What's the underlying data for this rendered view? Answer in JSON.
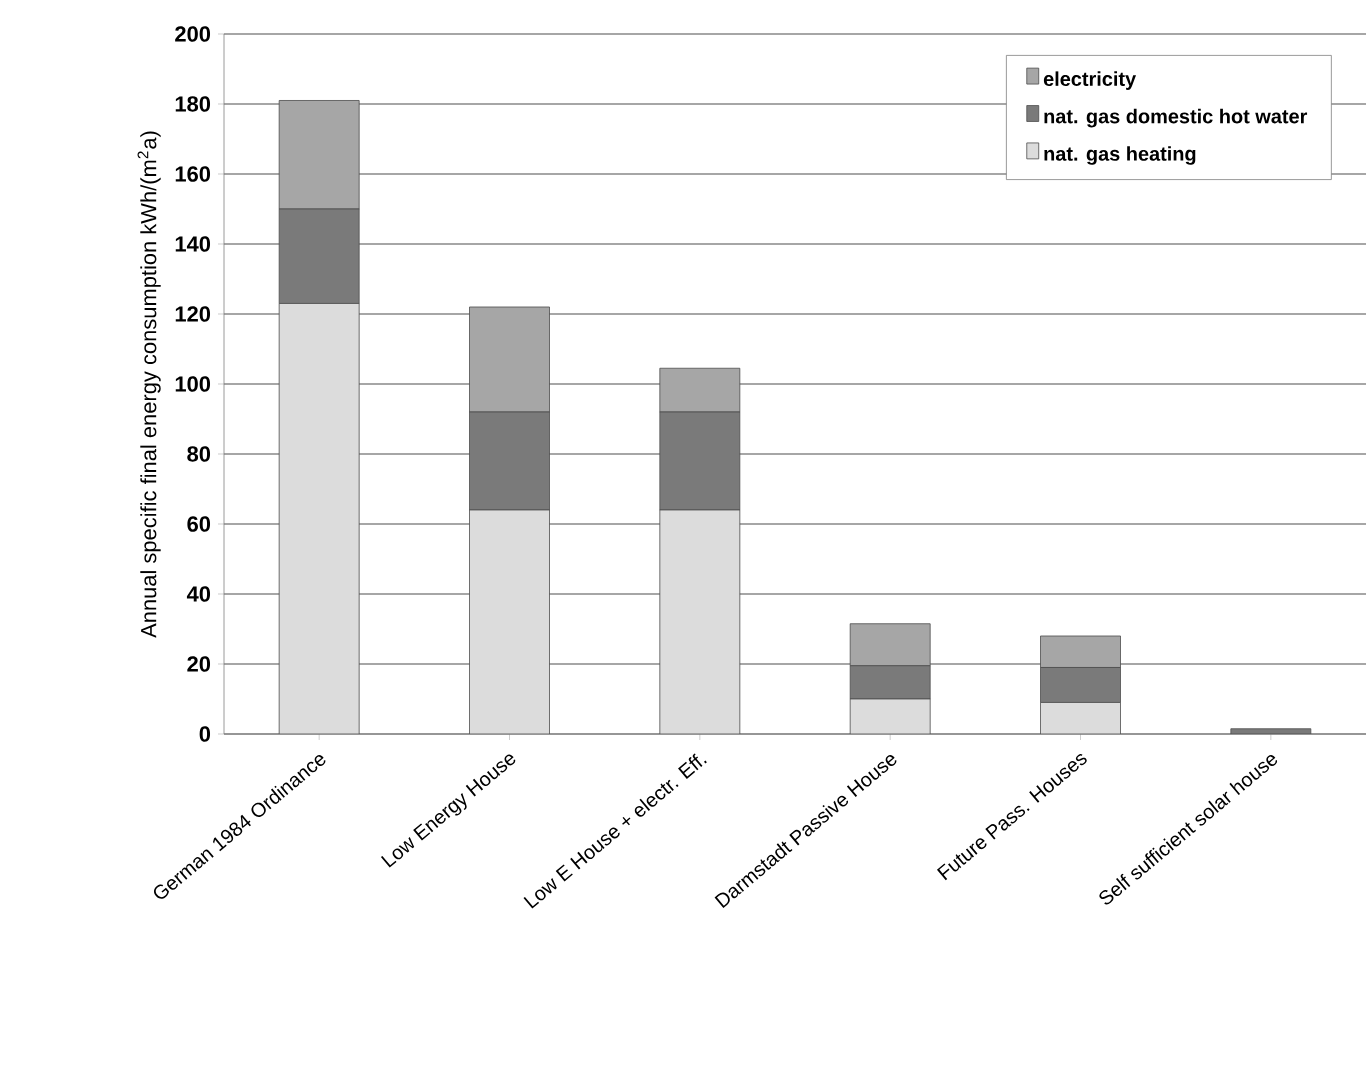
{
  "chart_data": {
    "type": "bar",
    "stacked": true,
    "ylabel": "Annual specific final energy consumption  kWh/(m$^{2}$a)",
    "categories": [
      "German 1984  Ordinance",
      "Low Energy House",
      "Low E House + electr. Eff.",
      "Darmstadt  Passive House",
      "Future  Pass. Houses",
      "Self sufficient solar house"
    ],
    "series": [
      {
        "name": "nat. gas heating",
        "color": "#dcdcdc",
        "values": [
          123,
          64,
          64,
          10,
          9,
          0
        ]
      },
      {
        "name": "nat. gas domestic hot water",
        "color": "#7a7a7a",
        "values": [
          27,
          28,
          28,
          9.5,
          10,
          1.5
        ]
      },
      {
        "name": "electricity",
        "color": "#a6a6a6",
        "values": [
          31,
          30,
          12.5,
          12,
          9,
          0
        ]
      }
    ],
    "ylim": [
      0,
      200
    ],
    "yticks": [
      0,
      20,
      40,
      60,
      80,
      100,
      120,
      140,
      160,
      180,
      200
    ],
    "grid": "y",
    "legend": "top right"
  }
}
